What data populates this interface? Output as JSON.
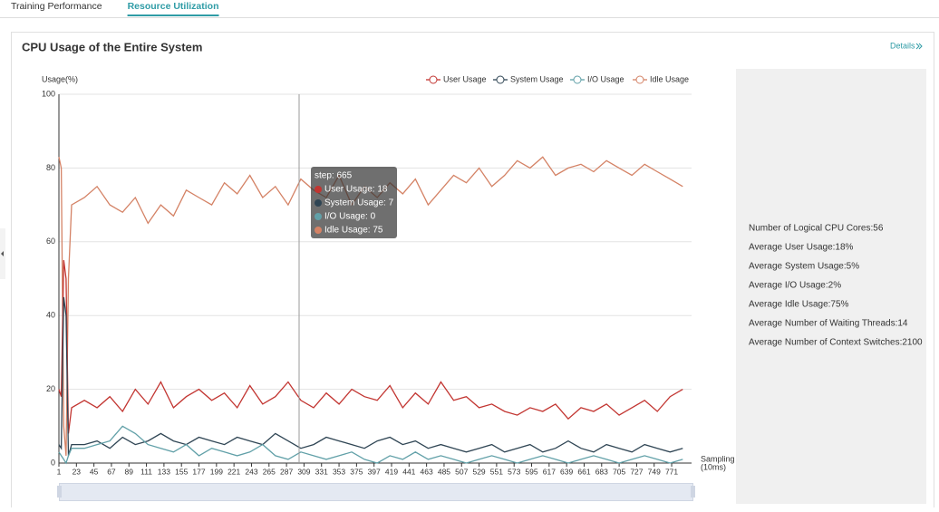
{
  "tabs": [
    {
      "label": "Training Performance",
      "active": false
    },
    {
      "label": "Resource Utilization",
      "active": true
    }
  ],
  "card": {
    "title": "CPU Usage of the Entire System",
    "details": "Details"
  },
  "chart_data": {
    "type": "line",
    "y_label": "Usage(%)",
    "x_label": [
      "Sampling",
      "(10ms)"
    ],
    "x": [
      1,
      4,
      7,
      10,
      13,
      17,
      33,
      49,
      65,
      81,
      97,
      113,
      129,
      145,
      161,
      177,
      193,
      209,
      225,
      241,
      257,
      273,
      289,
      305,
      321,
      337,
      353,
      369,
      385,
      401,
      417,
      433,
      449,
      465,
      481,
      497,
      513,
      529,
      545,
      561,
      577,
      593,
      609,
      625,
      641,
      657,
      673,
      689,
      705,
      721,
      737,
      753,
      769,
      785
    ],
    "xlim": [
      1,
      796
    ],
    "xticks": [
      1,
      23,
      45,
      67,
      89,
      111,
      133,
      155,
      177,
      199,
      221,
      243,
      265,
      287,
      309,
      331,
      353,
      375,
      397,
      419,
      441,
      463,
      485,
      507,
      529,
      551,
      573,
      595,
      617,
      639,
      661,
      683,
      705,
      727,
      749,
      771
    ],
    "ylim": [
      0,
      100
    ],
    "yticks": [
      0,
      20,
      40,
      60,
      80,
      100
    ],
    "grid": true,
    "series": [
      {
        "name": "User Usage",
        "color": "#c23531",
        "values": [
          20,
          18,
          55,
          50,
          8,
          15,
          17,
          15,
          18,
          14,
          20,
          16,
          22,
          15,
          18,
          20,
          17,
          19,
          15,
          21,
          16,
          18,
          22,
          17,
          15,
          19,
          16,
          20,
          18,
          17,
          21,
          15,
          19,
          16,
          22,
          17,
          18,
          15,
          16,
          14,
          13,
          15,
          14,
          16,
          12,
          15,
          14,
          16,
          13,
          15,
          17,
          14,
          18,
          20
        ]
      },
      {
        "name": "System Usage",
        "color": "#2f4554",
        "values": [
          5,
          4,
          45,
          40,
          2,
          5,
          5,
          6,
          4,
          7,
          5,
          6,
          8,
          6,
          5,
          7,
          6,
          5,
          7,
          6,
          5,
          8,
          6,
          4,
          5,
          7,
          6,
          5,
          4,
          6,
          7,
          5,
          6,
          4,
          5,
          4,
          3,
          4,
          5,
          3,
          4,
          5,
          3,
          4,
          6,
          4,
          3,
          5,
          4,
          3,
          5,
          4,
          3,
          4
        ]
      },
      {
        "name": "I/O Usage",
        "color": "#61a0a8",
        "values": [
          3,
          2,
          1,
          0,
          2,
          4,
          4,
          5,
          6,
          10,
          8,
          5,
          4,
          3,
          5,
          2,
          4,
          3,
          2,
          3,
          5,
          2,
          1,
          3,
          2,
          1,
          2,
          3,
          1,
          0,
          2,
          1,
          3,
          1,
          2,
          1,
          0,
          1,
          2,
          1,
          0,
          1,
          2,
          1,
          0,
          1,
          2,
          1,
          0,
          1,
          2,
          1,
          0,
          1
        ]
      },
      {
        "name": "Idle Usage",
        "color": "#d48265",
        "values": [
          83,
          80,
          10,
          2,
          50,
          70,
          72,
          75,
          70,
          68,
          72,
          65,
          70,
          67,
          74,
          72,
          70,
          76,
          73,
          78,
          72,
          75,
          70,
          77,
          74,
          72,
          78,
          70,
          75,
          72,
          76,
          73,
          77,
          70,
          74,
          78,
          76,
          80,
          75,
          78,
          82,
          80,
          83,
          78,
          80,
          81,
          79,
          82,
          80,
          78,
          81,
          79,
          77,
          75
        ]
      }
    ],
    "tooltip": {
      "title": "step: 665",
      "lines": [
        "User Usage: 18",
        "System Usage: 7",
        "I/O Usage: 0",
        "Idle Usage: 75"
      ]
    }
  },
  "stats": [
    "Number of Logical CPU Cores:56",
    "Average User Usage:18%",
    "Average System Usage:5%",
    "Average I/O Usage:2%",
    "Average Idle Usage:75%",
    "Average Number of Waiting Threads:14",
    "Average Number of Context Switches:2100"
  ]
}
